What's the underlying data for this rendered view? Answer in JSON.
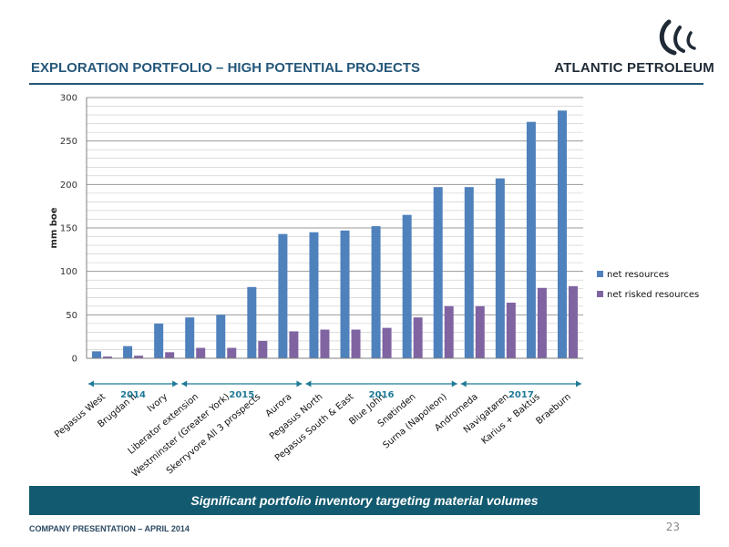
{
  "header": {
    "title": "EXPLORATION PORTFOLIO – HIGH POTENTIAL PROJECTS",
    "company": "ATLANTIC PETROLEUM"
  },
  "banner": {
    "text": "Significant portfolio inventory targeting material volumes"
  },
  "footer": {
    "presentation": "COMPANY PRESENTATION – APRIL 2014",
    "page_number": "23"
  },
  "colors": {
    "net": "#4f81bd",
    "risked": "#8064a2",
    "accent": "#24577a",
    "banner": "#125a70"
  },
  "chart_data": {
    "type": "bar",
    "categories": [
      "Pegasus West",
      "Brugdan II",
      "Ivory",
      "Liberator extension",
      "Westminster (Greater York)",
      "Skerryvore All 3 prospects",
      "Aurora",
      "Pegasus North",
      "Pegasus South & East",
      "Blue John",
      "Snøtinden",
      "Surna (Napoleon)",
      "Andromeda",
      "Navigatøren",
      "Karius + Baktus",
      "Braeburn"
    ],
    "series": [
      {
        "name": "net resources",
        "values": [
          8,
          14,
          40,
          47,
          50,
          82,
          143,
          145,
          147,
          152,
          165,
          197,
          197,
          207,
          272,
          285
        ]
      },
      {
        "name": "net risked resources",
        "values": [
          2,
          3,
          7,
          12,
          12,
          20,
          31,
          33,
          33,
          35,
          47,
          60,
          60,
          64,
          81,
          83
        ]
      }
    ],
    "ylabel": "mm boe",
    "ylim": [
      0,
      300
    ],
    "yticks": [
      0,
      50,
      100,
      150,
      200,
      250,
      300
    ],
    "minor_grid_step": 10,
    "grid": true,
    "legend_position": "right",
    "year_groups": [
      {
        "label": "2014",
        "first": 0,
        "last": 2
      },
      {
        "label": "2015",
        "first": 3,
        "last": 6
      },
      {
        "label": "2016",
        "first": 7,
        "last": 11
      },
      {
        "label": "2017",
        "first": 12,
        "last": 15
      }
    ]
  }
}
